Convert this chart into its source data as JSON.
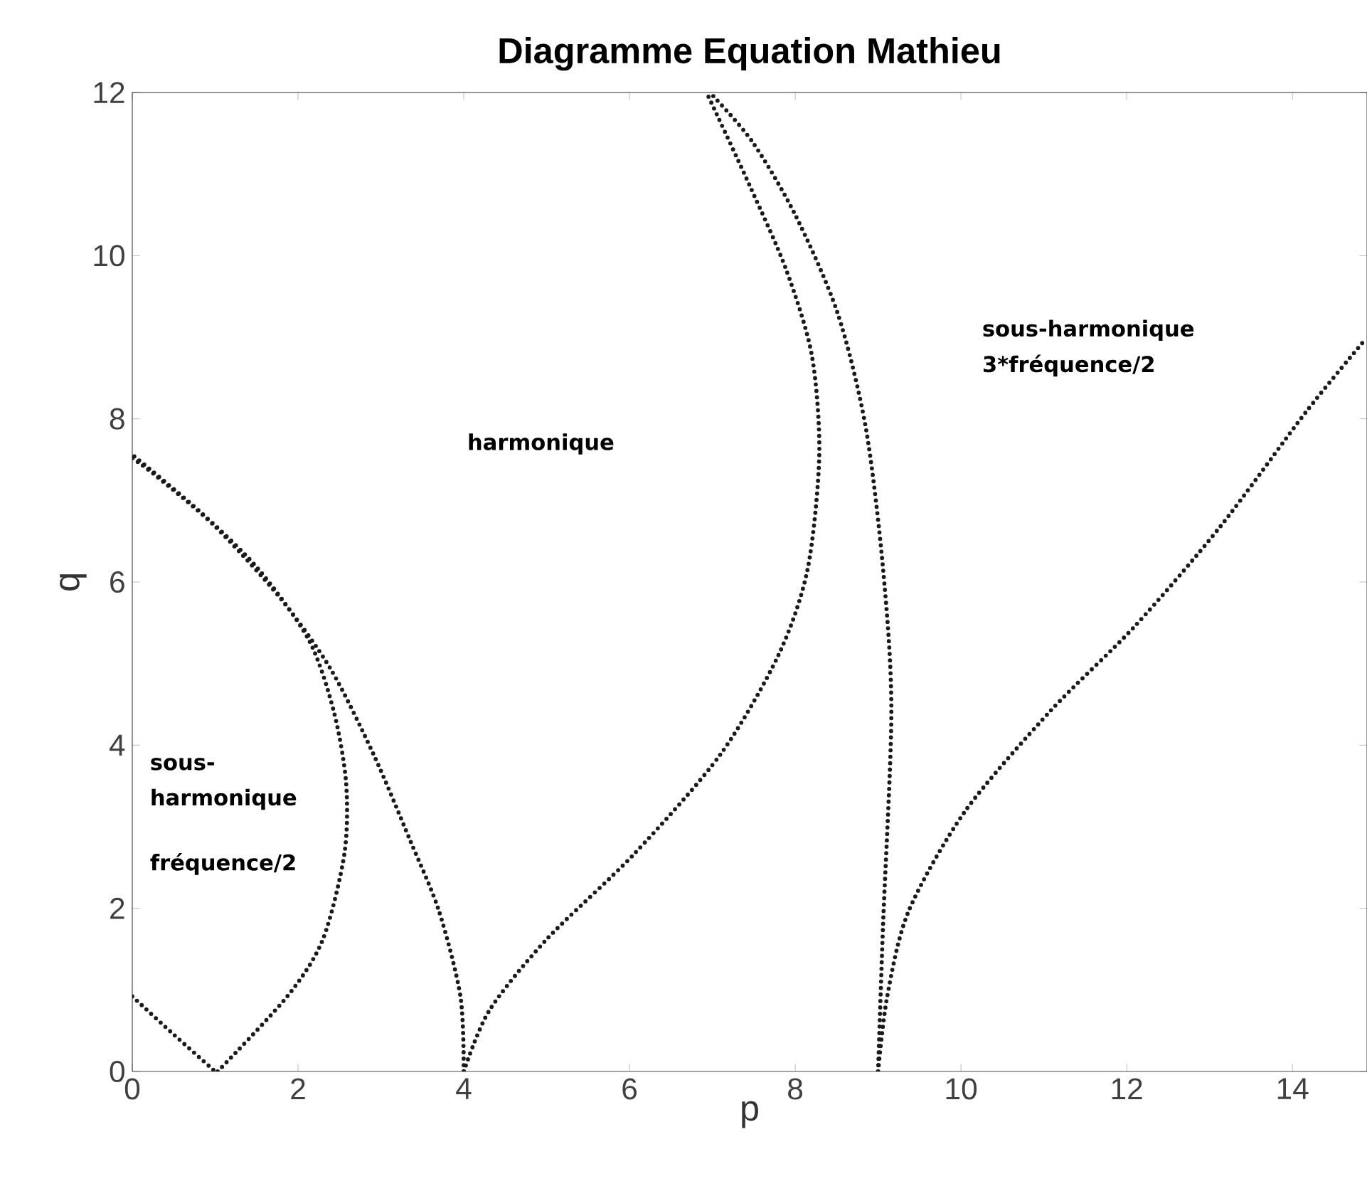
{
  "chart_data": {
    "type": "line",
    "title": "Diagramme Equation Mathieu",
    "xlabel": "p",
    "ylabel": "q",
    "xlim": [
      0,
      14.9
    ],
    "ylim": [
      0,
      12
    ],
    "xticks": [
      0,
      2,
      4,
      6,
      8,
      10,
      12,
      14
    ],
    "yticks": [
      0,
      2,
      4,
      6,
      8,
      10,
      12
    ],
    "line_style": "dotted",
    "marker": "none",
    "series": [
      {
        "color": "#1a1a1a",
        "x": [
          0,
          0.46,
          1.0
        ],
        "values": [
          0.92,
          0.49,
          0
        ]
      },
      {
        "color": "#1a1a1a",
        "x": [
          1.03,
          1.87,
          2.3,
          2.56,
          2.58,
          2.43,
          2.13,
          1.52,
          0.82,
          0
        ],
        "values": [
          0,
          0.92,
          1.62,
          2.67,
          3.54,
          4.42,
          5.29,
          6.16,
          6.86,
          7.56
        ]
      },
      {
        "color": "#1a1a1a",
        "x": [
          4.0,
          3.96,
          3.7,
          3.35,
          2.91,
          2.39,
          1.78,
          1.0,
          0.3,
          0
        ],
        "values": [
          0,
          0.92,
          1.97,
          2.84,
          3.89,
          4.94,
          5.81,
          6.68,
          7.29,
          7.52
        ]
      },
      {
        "color": "#1a1a1a",
        "x": [
          4.0,
          4.31,
          5.0,
          6.06,
          7.1,
          7.8,
          8.15,
          8.29,
          8.2,
          7.89,
          7.45,
          6.93
        ],
        "values": [
          0,
          0.75,
          1.62,
          2.67,
          3.89,
          5.11,
          6.16,
          7.56,
          8.78,
          9.83,
          10.86,
          12
        ]
      },
      {
        "color": "#1a1a1a",
        "x": [
          9.0,
          9.06,
          9.16,
          9.06,
          8.85,
          8.51,
          8.0,
          7.48,
          6.97
        ],
        "values": [
          0,
          1.8,
          4.42,
          6.16,
          7.9,
          9.3,
          10.5,
          11.4,
          12
        ]
      },
      {
        "color": "#1a1a1a",
        "x": [
          9.0,
          9.11,
          9.37,
          10.05,
          11.08,
          12.1,
          13.13,
          14.16,
          14.86
        ],
        "values": [
          0,
          0.92,
          1.97,
          3.19,
          4.42,
          5.46,
          6.68,
          8.08,
          8.95
        ]
      }
    ],
    "annotations": [
      "sous-",
      "harmonique",
      "fréquence/2",
      "harmonique",
      "sous-harmonique",
      "3*fréquence/2"
    ]
  }
}
